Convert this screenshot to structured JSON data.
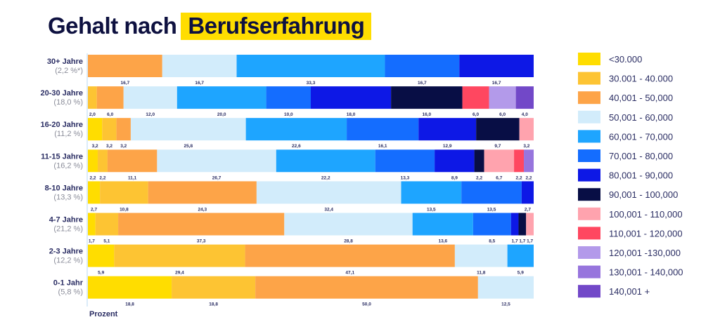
{
  "title": {
    "prefix": "Gehalt nach",
    "highlight": "Berufserfahrung"
  },
  "chart_data": {
    "type": "bar",
    "orientation": "horizontal",
    "stacked": true,
    "xlabel": "Prozent",
    "xlim": [
      0,
      100
    ],
    "grid": false,
    "legend_position": "right",
    "categories_legend": [
      {
        "label": "<30.000",
        "color": "#FFDD00"
      },
      {
        "label": "30.001 - 40.000",
        "color": "#FDC433"
      },
      {
        "label": "40,001 - 50,000",
        "color": "#FDA448"
      },
      {
        "label": "50,001 - 60,000",
        "color": "#D2ECFB"
      },
      {
        "label": "60,001 - 70,000",
        "color": "#1EA5FF"
      },
      {
        "label": "70,001 - 80,000",
        "color": "#146DFF"
      },
      {
        "label": "80,001 - 90,000",
        "color": "#0D18E6"
      },
      {
        "label": "90,001 - 100,000",
        "color": "#080E45"
      },
      {
        "label": "100,001 - 110,000",
        "color": "#FFA3AE"
      },
      {
        "label": "110,001 - 120,000",
        "color": "#FF4760"
      },
      {
        "label": "120,001 -130,000",
        "color": "#B39AEA"
      },
      {
        "label": "130,001 - 140,000",
        "color": "#9775DD"
      },
      {
        "label": "140,001 +",
        "color": "#7248C8"
      }
    ],
    "rows": [
      {
        "label": "30+ Jahre",
        "share": "(2,2 %*)",
        "segments": [
          [
            2,
            16.7
          ],
          [
            3,
            16.7
          ],
          [
            4,
            33.3
          ],
          [
            5,
            16.7
          ],
          [
            6,
            16.7
          ]
        ]
      },
      {
        "label": "20-30 Jahre",
        "share": "(18,0 %)",
        "segments": [
          [
            1,
            2.0
          ],
          [
            2,
            6.0
          ],
          [
            3,
            12.0
          ],
          [
            4,
            20.0
          ],
          [
            5,
            10.0
          ],
          [
            6,
            18.0
          ],
          [
            7,
            16.0
          ],
          [
            9,
            6.0
          ],
          [
            10,
            6.0
          ],
          [
            12,
            4.0
          ]
        ]
      },
      {
        "label": "16-20 Jahre",
        "share": "(11,2 %)",
        "segments": [
          [
            0,
            3.2
          ],
          [
            1,
            3.2
          ],
          [
            2,
            3.2
          ],
          [
            3,
            25.8
          ],
          [
            4,
            22.6
          ],
          [
            5,
            16.1
          ],
          [
            6,
            12.9
          ],
          [
            7,
            9.7
          ],
          [
            8,
            3.2
          ]
        ]
      },
      {
        "label": "11-15 Jahre",
        "share": "(16,2 %)",
        "segments": [
          [
            0,
            2.2
          ],
          [
            1,
            2.2
          ],
          [
            2,
            11.1
          ],
          [
            3,
            26.7
          ],
          [
            4,
            22.2
          ],
          [
            5,
            13.3
          ],
          [
            6,
            8.9
          ],
          [
            7,
            2.2
          ],
          [
            8,
            6.7
          ],
          [
            9,
            2.2
          ],
          [
            11,
            2.2
          ]
        ]
      },
      {
        "label": "8-10 Jahre",
        "share": "(13,3 %)",
        "segments": [
          [
            0,
            2.7
          ],
          [
            1,
            10.8
          ],
          [
            2,
            24.3
          ],
          [
            3,
            32.4
          ],
          [
            4,
            13.5
          ],
          [
            5,
            13.5
          ],
          [
            6,
            2.7
          ]
        ]
      },
      {
        "label": "4-7 Jahre",
        "share": "(21,2 %)",
        "segments": [
          [
            0,
            1.7
          ],
          [
            1,
            5.1
          ],
          [
            2,
            37.3
          ],
          [
            3,
            28.8
          ],
          [
            4,
            13.6
          ],
          [
            5,
            8.5
          ],
          [
            6,
            1.7
          ],
          [
            7,
            1.7
          ],
          [
            8,
            1.7
          ]
        ]
      },
      {
        "label": "2-3 Jahre",
        "share": "(12,2 %)",
        "segments": [
          [
            0,
            5.9
          ],
          [
            1,
            29.4
          ],
          [
            2,
            47.1
          ],
          [
            3,
            11.8
          ],
          [
            4,
            5.9
          ]
        ]
      },
      {
        "label": "0-1 Jahr",
        "share": "(5,8 %)",
        "segments": [
          [
            0,
            18.8
          ],
          [
            1,
            18.8
          ],
          [
            2,
            50.0
          ],
          [
            3,
            12.5
          ]
        ]
      }
    ]
  }
}
